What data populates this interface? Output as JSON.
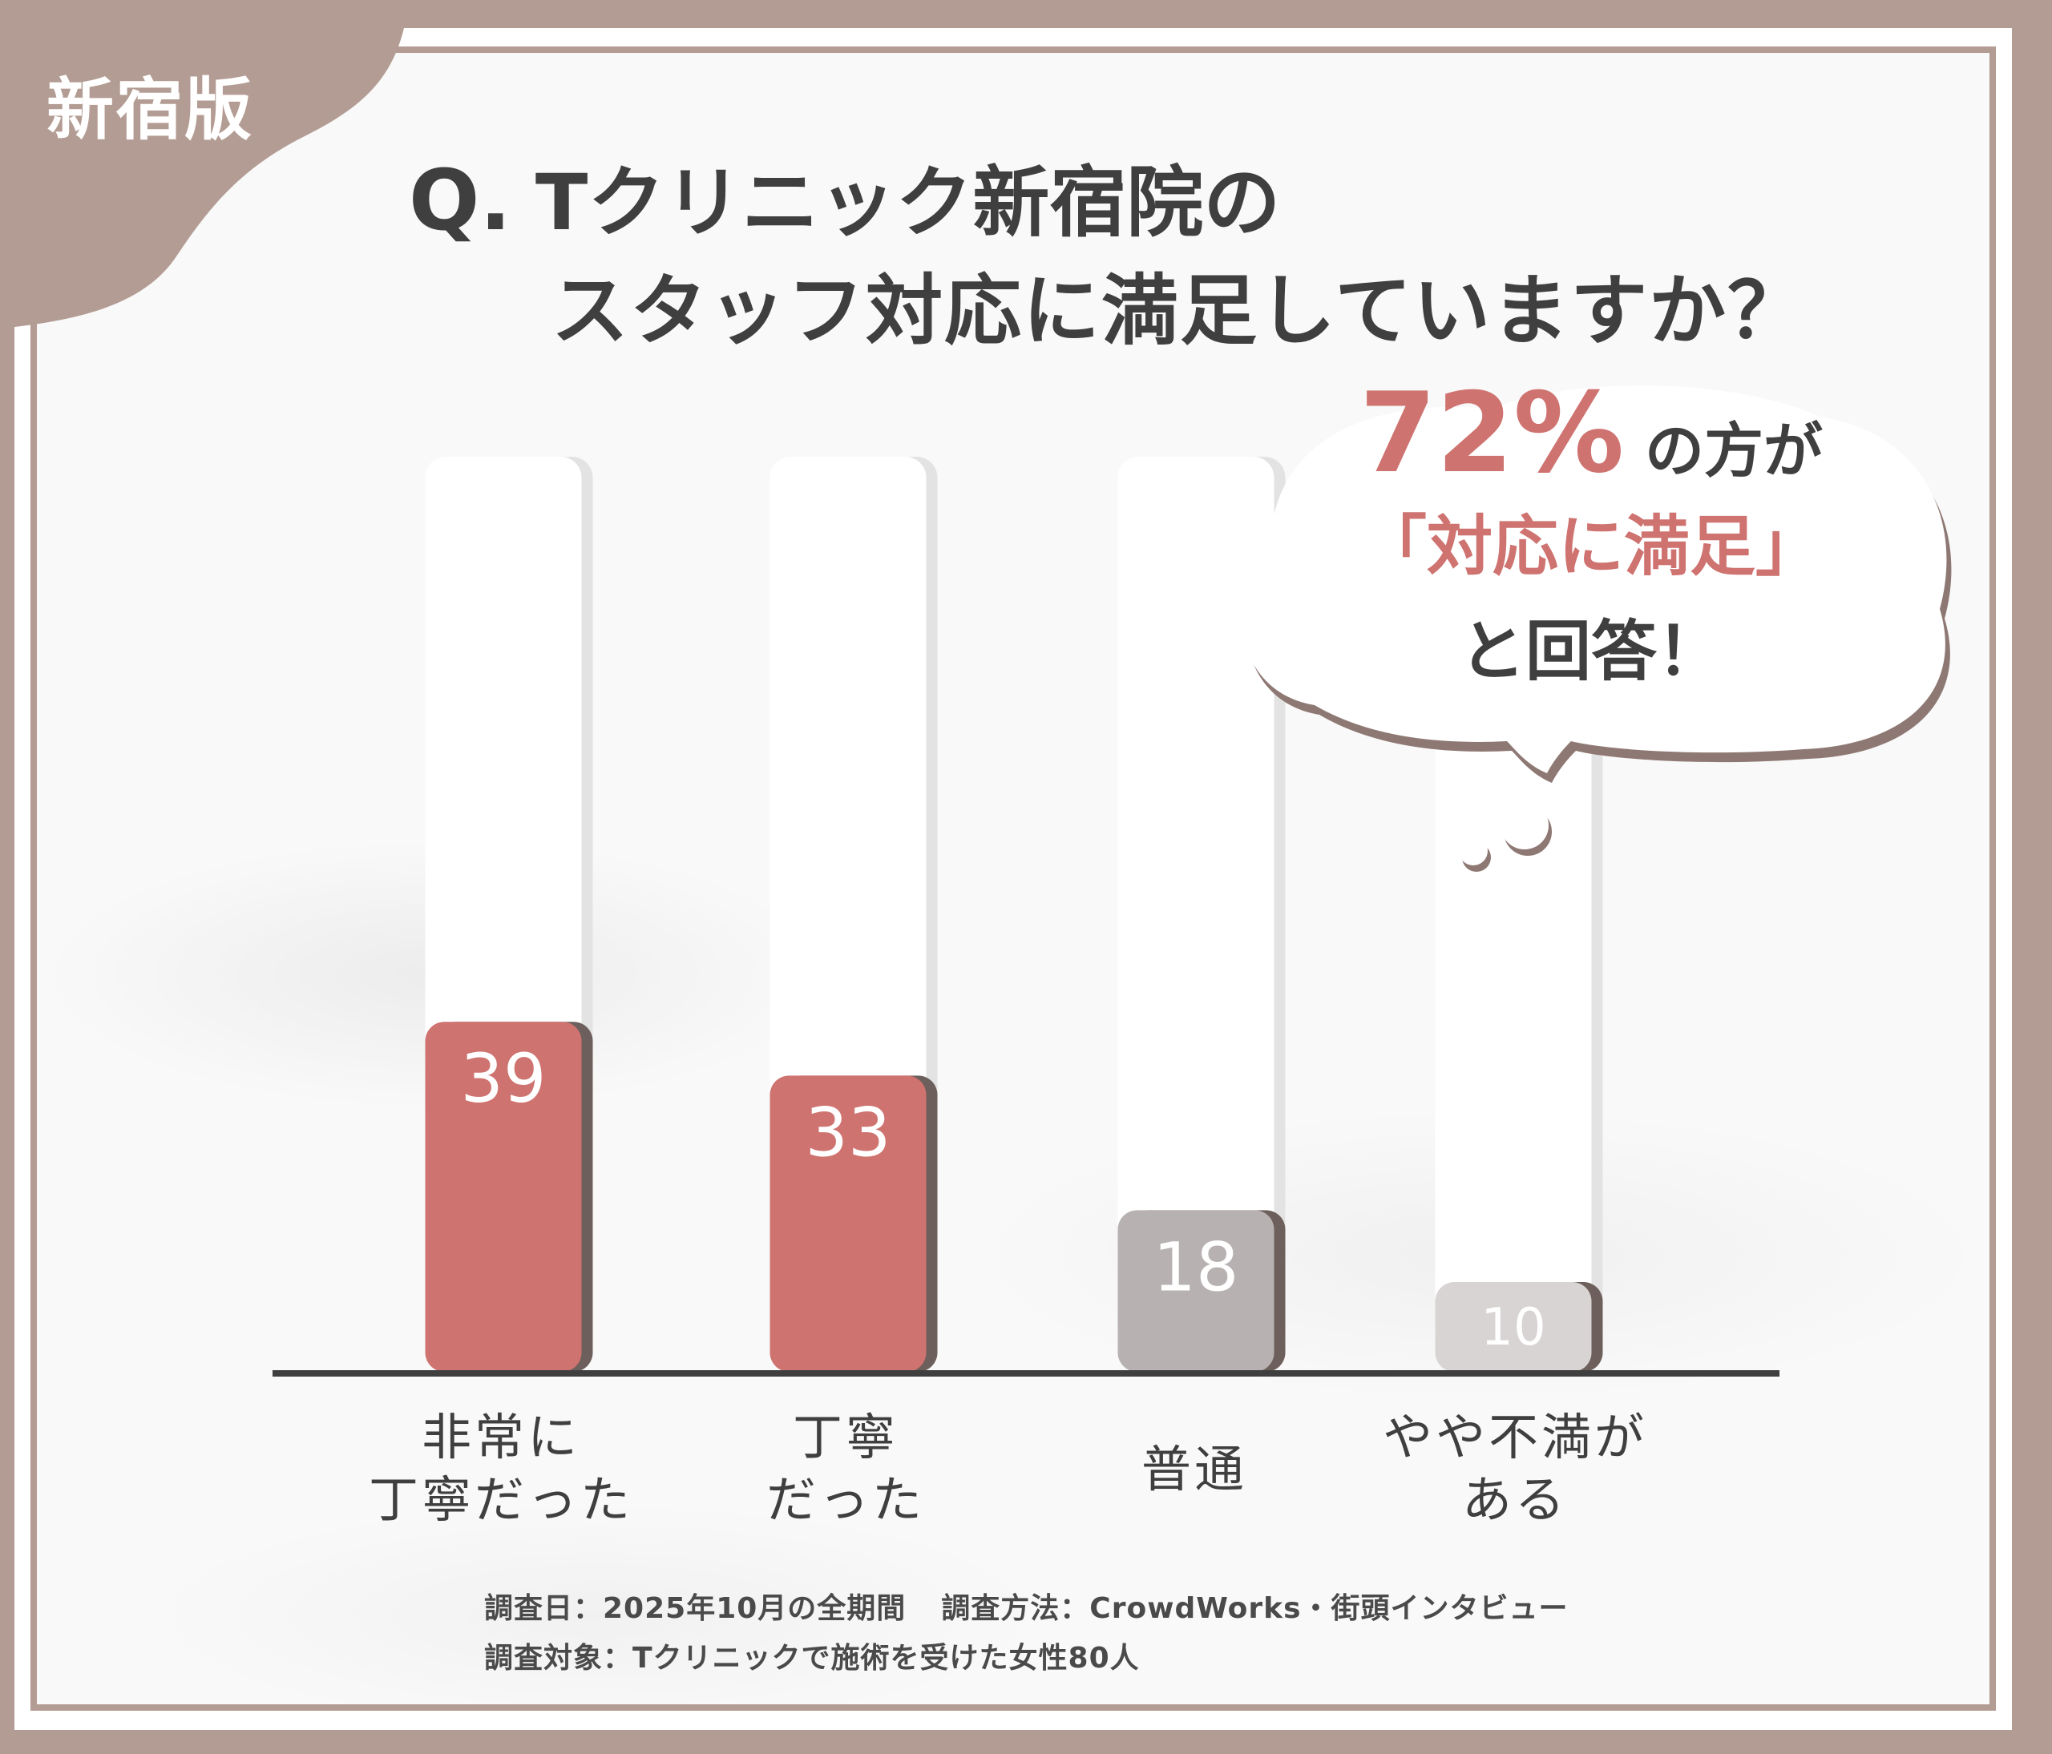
{
  "badge": "新宿版",
  "title": {
    "q": "Q.",
    "line1": "Tクリニック新宿院の",
    "line2": "スタッフ対応に満足していますか？"
  },
  "callout": {
    "percent": "72%",
    "suffix": "の方が",
    "highlight": "「対応に満足」",
    "ending": "と回答！"
  },
  "footnote": {
    "date": "調査日：2025年10月の全期間",
    "method": "調査方法：CrowdWorks・街頭インタビュー",
    "target": "調査対象：Tクリニックで施術を受けた女性80人"
  },
  "colors": {
    "frame": "#b39c93",
    "accent": "#cf7370",
    "neutral": "#b7b2b1",
    "light": "#d7d4d3",
    "text": "#3f3f3f"
  },
  "chart_data": {
    "type": "bar",
    "categories": [
      "非常に\n丁寧だった",
      "丁寧\nだった",
      "普通",
      "やや不満が\nある"
    ],
    "values": [
      39,
      33,
      18,
      10
    ],
    "bar_colors": [
      "#cf7370",
      "#cf7370",
      "#b7b2b1",
      "#d7d4d3"
    ],
    "ylim": [
      0,
      100
    ]
  }
}
